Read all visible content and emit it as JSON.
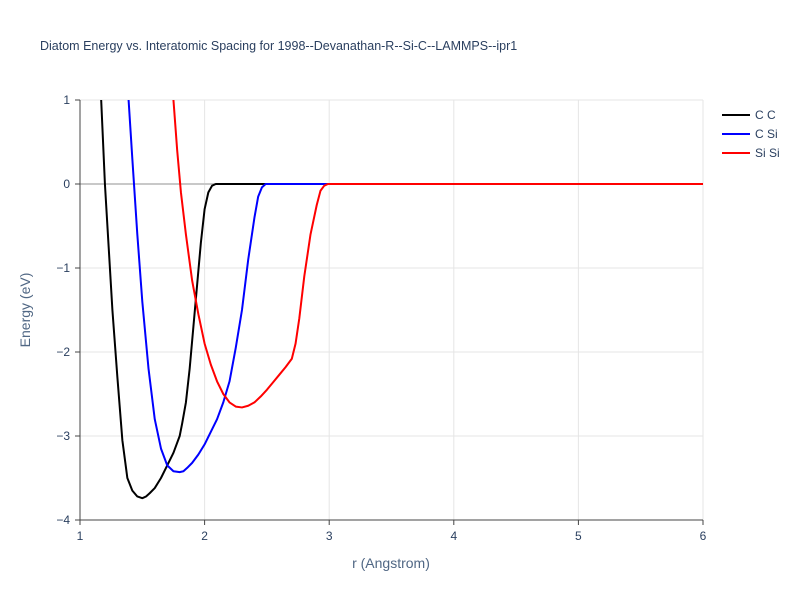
{
  "chart_data": {
    "type": "line",
    "title": "Diatom Energy vs. Interatomic Spacing for 1998--Devanathan-R--Si-C--LAMMPS--ipr1",
    "xlabel": "r (Angstrom)",
    "ylabel": "Energy (eV)",
    "xlim": [
      1,
      6
    ],
    "ylim": [
      -4,
      1
    ],
    "xticks": [
      1,
      2,
      3,
      4,
      5,
      6
    ],
    "yticks": [
      1,
      0,
      -1,
      -2,
      -3,
      -4
    ],
    "xtick_labels": [
      "1",
      "2",
      "3",
      "4",
      "5",
      "6"
    ],
    "ytick_labels": [
      "1",
      "0",
      "−1",
      "−2",
      "−3",
      "−4"
    ],
    "grid": true,
    "legend_position": "top-right",
    "series": [
      {
        "name": "C C",
        "color": "#000000",
        "x": [
          1.17,
          1.2,
          1.23,
          1.26,
          1.3,
          1.34,
          1.38,
          1.42,
          1.46,
          1.5,
          1.53,
          1.56,
          1.6,
          1.65,
          1.7,
          1.75,
          1.8,
          1.82,
          1.85,
          1.88,
          1.91,
          1.94,
          1.97,
          2.0,
          2.03,
          2.06,
          2.09,
          2.12,
          2.2,
          3.0,
          4.0,
          5.0,
          6.0
        ],
        "y": [
          1.0,
          0.0,
          -0.75,
          -1.5,
          -2.3,
          -3.05,
          -3.5,
          -3.65,
          -3.72,
          -3.74,
          -3.72,
          -3.68,
          -3.62,
          -3.5,
          -3.35,
          -3.2,
          -3.0,
          -2.85,
          -2.6,
          -2.2,
          -1.7,
          -1.2,
          -0.7,
          -0.3,
          -0.1,
          -0.02,
          0.0,
          0.0,
          0.0,
          0.0,
          0.0,
          0.0,
          0.0
        ]
      },
      {
        "name": "C Si",
        "color": "#0000ff",
        "x": [
          1.39,
          1.42,
          1.46,
          1.5,
          1.55,
          1.6,
          1.65,
          1.7,
          1.75,
          1.8,
          1.83,
          1.86,
          1.9,
          1.95,
          2.0,
          2.05,
          2.1,
          2.15,
          2.2,
          2.25,
          2.3,
          2.35,
          2.4,
          2.43,
          2.46,
          2.49,
          2.52,
          2.6,
          3.0,
          4.0,
          5.0,
          6.0
        ],
        "y": [
          1.0,
          0.3,
          -0.6,
          -1.4,
          -2.2,
          -2.8,
          -3.15,
          -3.35,
          -3.42,
          -3.43,
          -3.42,
          -3.38,
          -3.32,
          -3.22,
          -3.1,
          -2.95,
          -2.8,
          -2.6,
          -2.35,
          -1.95,
          -1.5,
          -0.9,
          -0.4,
          -0.15,
          -0.04,
          0.0,
          0.0,
          0.0,
          0.0,
          0.0,
          0.0,
          0.0
        ]
      },
      {
        "name": "Si Si",
        "color": "#ff0000",
        "x": [
          1.75,
          1.78,
          1.81,
          1.85,
          1.9,
          1.95,
          2.0,
          2.05,
          2.1,
          2.15,
          2.2,
          2.25,
          2.3,
          2.35,
          2.4,
          2.45,
          2.5,
          2.55,
          2.6,
          2.65,
          2.7,
          2.73,
          2.76,
          2.8,
          2.85,
          2.9,
          2.93,
          2.96,
          2.99,
          3.05,
          4.0,
          5.0,
          6.0
        ],
        "y": [
          1.0,
          0.4,
          -0.1,
          -0.6,
          -1.15,
          -1.55,
          -1.9,
          -2.15,
          -2.35,
          -2.5,
          -2.6,
          -2.65,
          -2.66,
          -2.64,
          -2.6,
          -2.53,
          -2.45,
          -2.36,
          -2.27,
          -2.18,
          -2.08,
          -1.9,
          -1.6,
          -1.1,
          -0.6,
          -0.25,
          -0.08,
          -0.02,
          0.0,
          0.0,
          0.0,
          0.0,
          0.0
        ]
      }
    ]
  }
}
